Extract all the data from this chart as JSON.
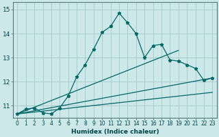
{
  "xlabel": "Humidex (Indice chaleur)",
  "bg_color": "#cce8e8",
  "grid_color": "#aacccc",
  "line_color": "#006666",
  "xlim": [
    -0.5,
    23.5
  ],
  "ylim": [
    10.5,
    15.3
  ],
  "yticks": [
    11,
    12,
    13,
    14,
    15
  ],
  "xticks": [
    0,
    1,
    2,
    3,
    4,
    5,
    6,
    7,
    8,
    9,
    10,
    11,
    12,
    13,
    14,
    15,
    16,
    17,
    18,
    19,
    20,
    21,
    22,
    23
  ],
  "curve_x": [
    0,
    1,
    2,
    3,
    4,
    5,
    6,
    7,
    8,
    9,
    10,
    11,
    12,
    13,
    14,
    15,
    16,
    17,
    18,
    19,
    20,
    21,
    22,
    23
  ],
  "curve_y": [
    10.65,
    10.85,
    10.9,
    10.7,
    10.65,
    10.9,
    11.4,
    12.2,
    12.7,
    13.35,
    14.05,
    14.3,
    14.85,
    14.45,
    14.0,
    13.0,
    13.5,
    13.55,
    12.9,
    12.85,
    12.7,
    12.55,
    12.05,
    12.15
  ],
  "line1_x": [
    0,
    23
  ],
  "line1_y": [
    10.65,
    12.15
  ],
  "line2_x": [
    0,
    19
  ],
  "line2_y": [
    10.65,
    13.3
  ],
  "line3_x": [
    0,
    23
  ],
  "line3_y": [
    10.65,
    11.55
  ],
  "tick_fontsize": 5.5,
  "xlabel_fontsize": 6.5
}
